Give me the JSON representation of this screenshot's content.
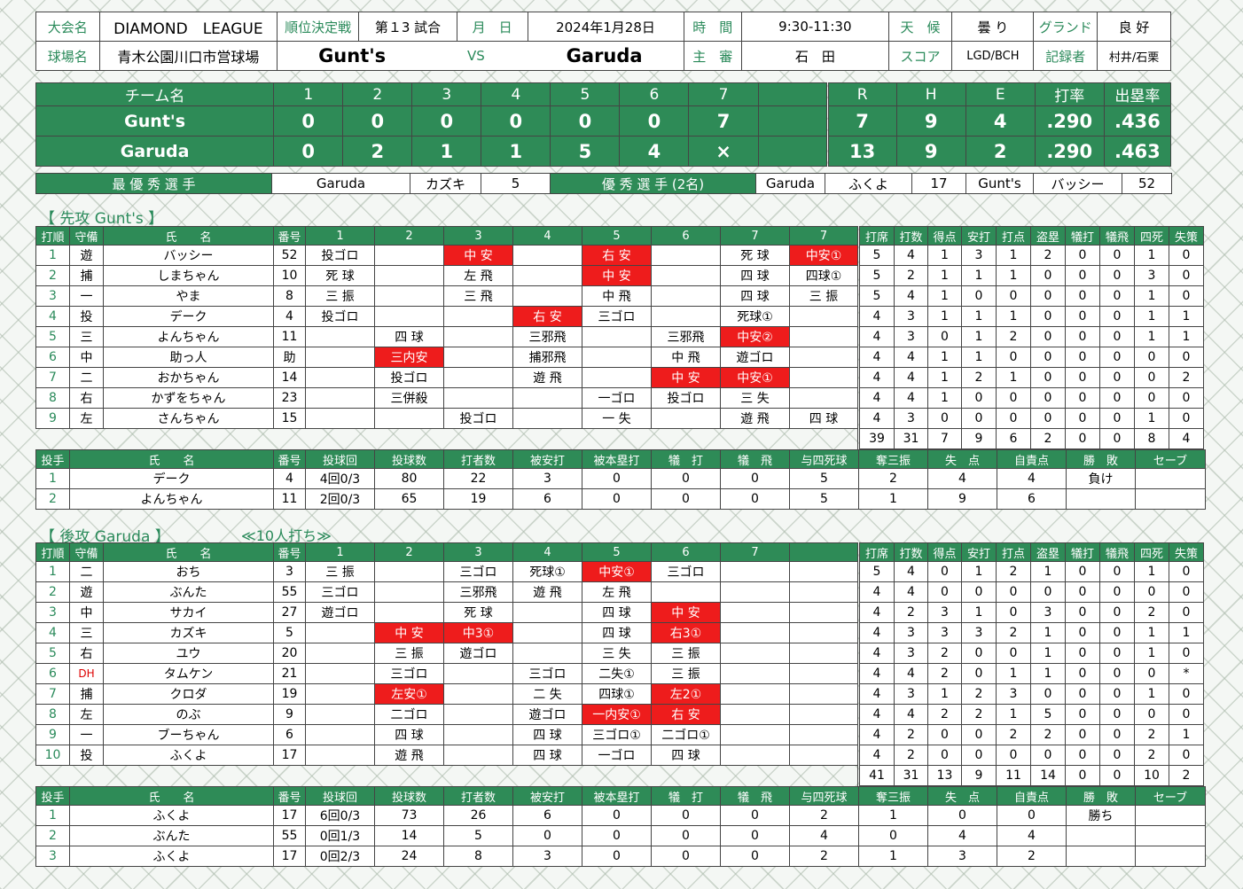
{
  "header": {
    "tournament_label": "大会名",
    "tournament": "DIAMOND　LEAGUE",
    "game_type_label": "順位決定戦",
    "game_no": "第１3 試合",
    "date_label": "月　日",
    "date": "2024年1月28日",
    "time_label": "時　間",
    "time": "9:30-11:30",
    "weather_label": "天　候",
    "weather": "曇 り",
    "ground_label": "グランド",
    "ground": "良 好",
    "venue_label": "球場名",
    "venue": "青木公園川口市営球場",
    "team1": "Gunt's",
    "vs": "VS",
    "team2": "Garuda",
    "umpire_label": "主　審",
    "umpire": "石　田",
    "score_label": "スコア",
    "scorer": "LGD/BCH",
    "recorder_label": "記録者",
    "recorder": "村井/石栗"
  },
  "linescore": {
    "headers": [
      "チーム名",
      "1",
      "2",
      "3",
      "4",
      "5",
      "6",
      "7",
      "",
      "R",
      "H",
      "E",
      "打率",
      "出塁率"
    ],
    "rows": [
      {
        "team": "Gunt's",
        "innings": [
          "0",
          "0",
          "0",
          "0",
          "0",
          "0",
          "7",
          ""
        ],
        "r": "7",
        "h": "9",
        "e": "4",
        "avg": ".290",
        "obp": ".436"
      },
      {
        "team": "Garuda",
        "innings": [
          "0",
          "2",
          "1",
          "1",
          "5",
          "4",
          "×",
          ""
        ],
        "r": "13",
        "h": "9",
        "e": "2",
        "avg": ".290",
        "obp": ".463"
      }
    ]
  },
  "awards": {
    "mvp_label": "最 優 秀 選 手",
    "mvp_team": "Garuda",
    "mvp_name": "カズキ",
    "mvp_no": "5",
    "excellent_label": "優 秀 選 手 (2名)",
    "ex1_team": "Garuda",
    "ex1_name": "ふくよ",
    "ex1_no": "17",
    "ex2_team": "Gunt's",
    "ex2_name": "バッシー",
    "ex2_no": "52"
  },
  "away": {
    "section_title": "【 先攻 Gunt's 】",
    "headers": [
      "打順",
      "守備",
      "氏　　名",
      "番号",
      "1",
      "2",
      "3",
      "4",
      "5",
      "6",
      "7",
      "7",
      "打席",
      "打数",
      "得点",
      "安打",
      "打点",
      "盗塁",
      "犠打",
      "犠飛",
      "四死",
      "失策"
    ],
    "rows": [
      {
        "order": "1",
        "pos": "遊",
        "name": "バッシー",
        "no": "52",
        "ab": [
          [
            "投ゴロ",
            0
          ],
          [
            "",
            0
          ],
          [
            "中 安",
            1
          ],
          [
            "",
            0
          ],
          [
            "右 安",
            1
          ],
          [
            "",
            0
          ],
          [
            "死 球",
            0
          ],
          [
            "中安①",
            1
          ]
        ],
        "stats": [
          "5",
          "4",
          "1",
          "3",
          "1",
          "2",
          "0",
          "0",
          "1",
          "0"
        ]
      },
      {
        "order": "2",
        "pos": "捕",
        "name": "しまちゃん",
        "no": "10",
        "ab": [
          [
            "死 球",
            0
          ],
          [
            "",
            0
          ],
          [
            "左 飛",
            0
          ],
          [
            "",
            0
          ],
          [
            "中 安",
            1
          ],
          [
            "",
            0
          ],
          [
            "四 球",
            0
          ],
          [
            "四球①",
            0
          ]
        ],
        "stats": [
          "5",
          "2",
          "1",
          "1",
          "1",
          "0",
          "0",
          "0",
          "3",
          "0"
        ]
      },
      {
        "order": "3",
        "pos": "一",
        "name": "やま",
        "no": "8",
        "ab": [
          [
            "三 振",
            0
          ],
          [
            "",
            0
          ],
          [
            "三 飛",
            0
          ],
          [
            "",
            0
          ],
          [
            "中 飛",
            0
          ],
          [
            "",
            0
          ],
          [
            "四 球",
            0
          ],
          [
            "三 振",
            0
          ]
        ],
        "stats": [
          "5",
          "4",
          "1",
          "0",
          "0",
          "0",
          "0",
          "0",
          "1",
          "0"
        ]
      },
      {
        "order": "4",
        "pos": "投",
        "name": "デーク",
        "no": "4",
        "ab": [
          [
            "投ゴロ",
            0
          ],
          [
            "",
            0
          ],
          [
            "",
            0
          ],
          [
            "右 安",
            1
          ],
          [
            "三ゴロ",
            0
          ],
          [
            "",
            0
          ],
          [
            "死球①",
            0
          ],
          [
            "",
            0
          ]
        ],
        "stats": [
          "4",
          "3",
          "1",
          "1",
          "1",
          "0",
          "0",
          "0",
          "1",
          "1"
        ]
      },
      {
        "order": "5",
        "pos": "三",
        "name": "よんちゃん",
        "no": "11",
        "ab": [
          [
            "",
            0
          ],
          [
            "四 球",
            0
          ],
          [
            "",
            0
          ],
          [
            "三邪飛",
            0
          ],
          [
            "",
            0
          ],
          [
            "三邪飛",
            0
          ],
          [
            "中安②",
            1
          ],
          [
            "",
            0
          ]
        ],
        "stats": [
          "4",
          "3",
          "0",
          "1",
          "2",
          "0",
          "0",
          "0",
          "1",
          "1"
        ]
      },
      {
        "order": "6",
        "pos": "中",
        "name": "助っ人",
        "no": "助",
        "ab": [
          [
            "",
            0
          ],
          [
            "三内安",
            1
          ],
          [
            "",
            0
          ],
          [
            "捕邪飛",
            0
          ],
          [
            "",
            0
          ],
          [
            "中 飛",
            0
          ],
          [
            "遊ゴロ",
            0
          ],
          [
            "",
            0
          ]
        ],
        "stats": [
          "4",
          "4",
          "1",
          "1",
          "0",
          "0",
          "0",
          "0",
          "0",
          "0"
        ]
      },
      {
        "order": "7",
        "pos": "二",
        "name": "おかちゃん",
        "no": "14",
        "ab": [
          [
            "",
            0
          ],
          [
            "投ゴロ",
            0
          ],
          [
            "",
            0
          ],
          [
            "遊 飛",
            0
          ],
          [
            "",
            0
          ],
          [
            "中 安",
            1
          ],
          [
            "中安①",
            1
          ],
          [
            "",
            0
          ]
        ],
        "stats": [
          "4",
          "4",
          "1",
          "2",
          "1",
          "0",
          "0",
          "0",
          "0",
          "2"
        ]
      },
      {
        "order": "8",
        "pos": "右",
        "name": "かずをちゃん",
        "no": "23",
        "ab": [
          [
            "",
            0
          ],
          [
            "三併殺",
            0
          ],
          [
            "",
            0
          ],
          [
            "",
            0
          ],
          [
            "一ゴロ",
            0
          ],
          [
            "投ゴロ",
            0
          ],
          [
            "三 失",
            0
          ],
          [
            "",
            0
          ]
        ],
        "stats": [
          "4",
          "4",
          "1",
          "0",
          "0",
          "0",
          "0",
          "0",
          "0",
          "0"
        ]
      },
      {
        "order": "9",
        "pos": "左",
        "name": "さんちゃん",
        "no": "15",
        "ab": [
          [
            "",
            0
          ],
          [
            "",
            0
          ],
          [
            "投ゴロ",
            0
          ],
          [
            "",
            0
          ],
          [
            "一 失",
            0
          ],
          [
            "",
            0
          ],
          [
            "遊 飛",
            0
          ],
          [
            "四 球",
            0
          ]
        ],
        "stats": [
          "4",
          "3",
          "0",
          "0",
          "0",
          "0",
          "0",
          "0",
          "1",
          "0"
        ]
      }
    ],
    "totals": [
      "39",
      "31",
      "7",
      "9",
      "6",
      "2",
      "0",
      "0",
      "8",
      "4"
    ]
  },
  "away_pitch": {
    "headers": [
      "投手",
      "氏　　名",
      "番号",
      "投球回",
      "投球数",
      "打者数",
      "被安打",
      "被本塁打",
      "犠　打",
      "犠　飛",
      "与四死球",
      "奪三振",
      "失　点",
      "自責点",
      "勝　敗",
      "セーブ"
    ],
    "rows": [
      [
        "1",
        "デーク",
        "4",
        "4回0/3",
        "80",
        "22",
        "3",
        "0",
        "0",
        "0",
        "5",
        "2",
        "4",
        "4",
        "負け",
        ""
      ],
      [
        "2",
        "よんちゃん",
        "11",
        "2回0/3",
        "65",
        "19",
        "6",
        "0",
        "0",
        "0",
        "5",
        "1",
        "9",
        "6",
        "",
        ""
      ]
    ]
  },
  "home": {
    "section_title": "【 後攻 Garuda 】",
    "note": "≪10人打ち≫",
    "headers": [
      "打順",
      "守備",
      "氏　　名",
      "番号",
      "1",
      "2",
      "3",
      "4",
      "5",
      "6",
      "7",
      "",
      "打席",
      "打数",
      "得点",
      "安打",
      "打点",
      "盗塁",
      "犠打",
      "犠飛",
      "四死",
      "失策"
    ],
    "rows": [
      {
        "order": "1",
        "pos": "二",
        "name": "おち",
        "no": "3",
        "ab": [
          [
            "三 振",
            0
          ],
          [
            "",
            0
          ],
          [
            "三ゴロ",
            0
          ],
          [
            "死球①",
            0
          ],
          [
            "中安①",
            1
          ],
          [
            "三ゴロ",
            0
          ],
          [
            "",
            0
          ],
          [
            "",
            0
          ]
        ],
        "stats": [
          "5",
          "4",
          "0",
          "1",
          "2",
          "1",
          "0",
          "0",
          "1",
          "0"
        ]
      },
      {
        "order": "2",
        "pos": "遊",
        "name": "ぶんた",
        "no": "55",
        "ab": [
          [
            "三ゴロ",
            0
          ],
          [
            "",
            0
          ],
          [
            "三邪飛",
            0
          ],
          [
            "遊 飛",
            0
          ],
          [
            "左 飛",
            0
          ],
          [
            "",
            0
          ],
          [
            "",
            0
          ],
          [
            "",
            0
          ]
        ],
        "stats": [
          "4",
          "4",
          "0",
          "0",
          "0",
          "0",
          "0",
          "0",
          "0",
          "0"
        ]
      },
      {
        "order": "3",
        "pos": "中",
        "name": "サカイ",
        "no": "27",
        "ab": [
          [
            "遊ゴロ",
            0
          ],
          [
            "",
            0
          ],
          [
            "死 球",
            0
          ],
          [
            "",
            0
          ],
          [
            "四 球",
            0
          ],
          [
            "中 安",
            1
          ],
          [
            "",
            0
          ],
          [
            "",
            0
          ]
        ],
        "stats": [
          "4",
          "2",
          "3",
          "1",
          "0",
          "3",
          "0",
          "0",
          "2",
          "0"
        ]
      },
      {
        "order": "4",
        "pos": "三",
        "name": "カズキ",
        "no": "5",
        "ab": [
          [
            "",
            0
          ],
          [
            "中 安",
            1
          ],
          [
            "中3①",
            1
          ],
          [
            "",
            0
          ],
          [
            "四 球",
            0
          ],
          [
            "右3①",
            1
          ],
          [
            "",
            0
          ],
          [
            "",
            0
          ]
        ],
        "stats": [
          "4",
          "3",
          "3",
          "3",
          "2",
          "1",
          "0",
          "0",
          "1",
          "1"
        ]
      },
      {
        "order": "5",
        "pos": "右",
        "name": "ユウ",
        "no": "20",
        "ab": [
          [
            "",
            0
          ],
          [
            "三 振",
            0
          ],
          [
            "遊ゴロ",
            0
          ],
          [
            "",
            0
          ],
          [
            "三 失",
            0
          ],
          [
            "三 振",
            0
          ],
          [
            "",
            0
          ],
          [
            "",
            0
          ]
        ],
        "stats": [
          "4",
          "3",
          "2",
          "0",
          "0",
          "1",
          "0",
          "0",
          "1",
          "0"
        ]
      },
      {
        "order": "6",
        "pos": "DH",
        "name": "タムケン",
        "no": "21",
        "ab": [
          [
            "",
            0
          ],
          [
            "三ゴロ",
            0
          ],
          [
            "",
            0
          ],
          [
            "三ゴロ",
            0
          ],
          [
            "二失①",
            0
          ],
          [
            "三 振",
            0
          ],
          [
            "",
            0
          ],
          [
            "",
            0
          ]
        ],
        "stats": [
          "4",
          "4",
          "2",
          "0",
          "1",
          "1",
          "0",
          "0",
          "0",
          "*"
        ]
      },
      {
        "order": "7",
        "pos": "捕",
        "name": "クロダ",
        "no": "19",
        "ab": [
          [
            "",
            0
          ],
          [
            "左安①",
            1
          ],
          [
            "",
            0
          ],
          [
            "二 失",
            0
          ],
          [
            "四球①",
            0
          ],
          [
            "左2①",
            1
          ],
          [
            "",
            0
          ],
          [
            "",
            0
          ]
        ],
        "stats": [
          "4",
          "3",
          "1",
          "2",
          "3",
          "0",
          "0",
          "0",
          "1",
          "0"
        ]
      },
      {
        "order": "8",
        "pos": "左",
        "name": "のぶ",
        "no": "9",
        "ab": [
          [
            "",
            0
          ],
          [
            "二ゴロ",
            0
          ],
          [
            "",
            0
          ],
          [
            "遊ゴロ",
            0
          ],
          [
            "一内安①",
            1
          ],
          [
            "右 安",
            1
          ],
          [
            "",
            0
          ],
          [
            "",
            0
          ]
        ],
        "stats": [
          "4",
          "4",
          "2",
          "2",
          "1",
          "5",
          "0",
          "0",
          "0",
          "0"
        ]
      },
      {
        "order": "9",
        "pos": "一",
        "name": "ブーちゃん",
        "no": "6",
        "ab": [
          [
            "",
            0
          ],
          [
            "四 球",
            0
          ],
          [
            "",
            0
          ],
          [
            "四 球",
            0
          ],
          [
            "三ゴロ①",
            0
          ],
          [
            "二ゴロ①",
            0
          ],
          [
            "",
            0
          ],
          [
            "",
            0
          ]
        ],
        "stats": [
          "4",
          "2",
          "0",
          "0",
          "2",
          "2",
          "0",
          "0",
          "2",
          "1"
        ]
      },
      {
        "order": "10",
        "pos": "投",
        "name": "ふくよ",
        "no": "17",
        "ab": [
          [
            "",
            0
          ],
          [
            "遊 飛",
            0
          ],
          [
            "",
            0
          ],
          [
            "四 球",
            0
          ],
          [
            "一ゴロ",
            0
          ],
          [
            "四 球",
            0
          ],
          [
            "",
            0
          ],
          [
            "",
            0
          ]
        ],
        "stats": [
          "4",
          "2",
          "0",
          "0",
          "0",
          "0",
          "0",
          "0",
          "2",
          "0"
        ]
      }
    ],
    "totals": [
      "41",
      "31",
      "13",
      "9",
      "11",
      "14",
      "0",
      "0",
      "10",
      "2"
    ]
  },
  "home_pitch": {
    "headers": [
      "投手",
      "氏　　名",
      "番号",
      "投球回",
      "投球数",
      "打者数",
      "被安打",
      "被本塁打",
      "犠　打",
      "犠　飛",
      "与四死球",
      "奪三振",
      "失　点",
      "自責点",
      "勝　敗",
      "セーブ"
    ],
    "rows": [
      [
        "1",
        "ふくよ",
        "17",
        "6回0/3",
        "73",
        "26",
        "6",
        "0",
        "0",
        "0",
        "2",
        "1",
        "0",
        "0",
        "勝ち",
        ""
      ],
      [
        "2",
        "ぶんた",
        "55",
        "0回1/3",
        "14",
        "5",
        "0",
        "0",
        "0",
        "0",
        "4",
        "0",
        "4",
        "4",
        "",
        ""
      ],
      [
        "3",
        "ふくよ",
        "17",
        "0回2/3",
        "24",
        "8",
        "3",
        "0",
        "0",
        "0",
        "2",
        "1",
        "3",
        "2",
        "",
        ""
      ]
    ]
  }
}
